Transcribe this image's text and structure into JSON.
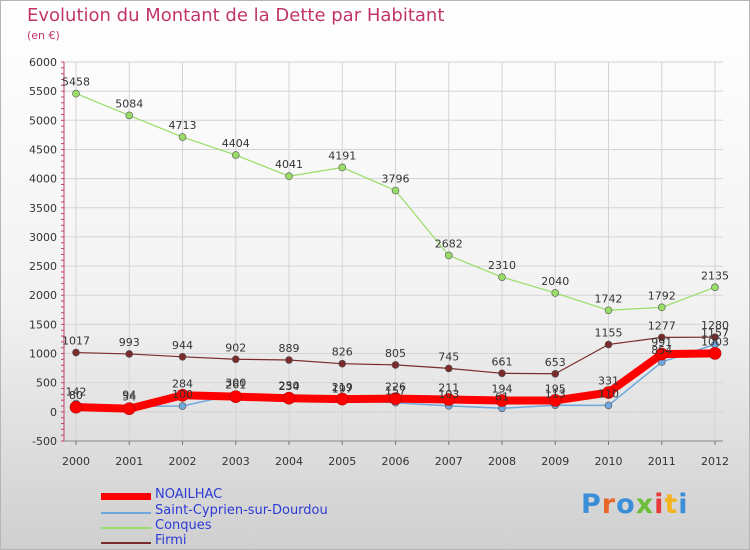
{
  "title": "Evolution du Montant de la Dette par Habitant",
  "subtitle": "(en €)",
  "logo": "Proxiti",
  "chart_data": {
    "type": "line",
    "x": [
      "2000",
      "2001",
      "2002",
      "2003",
      "2004",
      "2005",
      "2006",
      "2007",
      "2008",
      "2009",
      "2010",
      "2011",
      "2012"
    ],
    "ylim": [
      -500,
      6000
    ],
    "yticks": [
      -500,
      0,
      500,
      1000,
      1500,
      2000,
      2500,
      3000,
      3500,
      4000,
      4500,
      5000,
      5500,
      6000
    ],
    "grid": true,
    "legend_position": "bottom-left",
    "series": [
      {
        "name": "NOAILHAC",
        "color": "#ff0000",
        "width": 8,
        "values": [
          80,
          54,
          284,
          261,
          234,
          219,
          226,
          211,
          194,
          195,
          331,
          991,
          1003
        ]
      },
      {
        "name": "Saint-Cyprien-sur-Dourdou",
        "color": "#6fa8dc",
        "width": 1.5,
        "values": [
          142,
          94,
          100,
          300,
          250,
          197,
          157,
          103,
          61,
          113,
          110,
          854,
          1157
        ]
      },
      {
        "name": "Conques",
        "color": "#99dd66",
        "width": 1.2,
        "values": [
          5458,
          5084,
          4713,
          4404,
          4041,
          4191,
          3796,
          2682,
          2310,
          2040,
          1742,
          1792,
          2135
        ]
      },
      {
        "name": "Firmi",
        "color": "#7b2b2b",
        "width": 1.2,
        "values": [
          1017,
          993,
          944,
          902,
          889,
          826,
          805,
          745,
          661,
          653,
          1155,
          1277,
          1280
        ]
      }
    ]
  }
}
